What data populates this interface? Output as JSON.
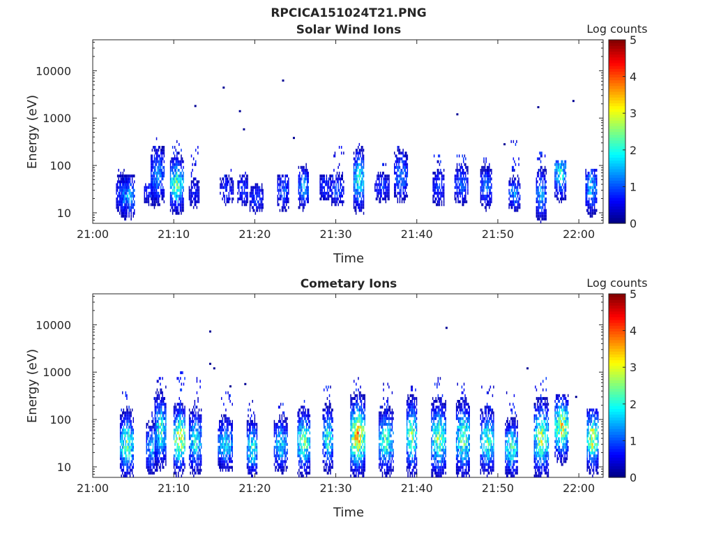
{
  "figure_title": "RPCICA151024T21.PNG",
  "chart_data": [
    {
      "type": "heatmap",
      "title": "Solar Wind Ions",
      "xlabel": "Time",
      "ylabel": "Energy (eV)",
      "x_scale": "time",
      "y_scale": "log",
      "xlim": [
        "21:00",
        "22:03"
      ],
      "ylim": [
        6,
        45000
      ],
      "xticks": [
        "21:00",
        "21:10",
        "21:20",
        "21:30",
        "21:40",
        "21:50",
        "22:00"
      ],
      "yticks": [
        {
          "value": 10,
          "label": "10"
        },
        {
          "value": 100,
          "label": "100"
        },
        {
          "value": 1000,
          "label": "1000"
        },
        {
          "value": 10000,
          "label": "10000"
        }
      ],
      "colorbar": {
        "label": "Log counts",
        "range": [
          0,
          5
        ],
        "ticks": [
          "0",
          "1",
          "2",
          "3",
          "4",
          "5"
        ],
        "colormap": "jet"
      },
      "bursts": [
        {
          "time": "21:03:40",
          "energy": 25,
          "spread": 0.25,
          "peak": 1.2,
          "up": 90
        },
        {
          "time": "21:04:20",
          "energy": 22,
          "spread": 0.25,
          "peak": 1.8,
          "up": 60
        },
        {
          "time": "21:07:10",
          "energy": 30,
          "spread": 0.2,
          "peak": 1.0,
          "up": 40
        },
        {
          "time": "21:08:00",
          "energy": 60,
          "spread": 0.35,
          "peak": 1.5,
          "up": 450
        },
        {
          "time": "21:10:20",
          "energy": 40,
          "spread": 0.3,
          "peak": 2.6,
          "up": 350
        },
        {
          "time": "21:12:30",
          "energy": 25,
          "spread": 0.2,
          "peak": 0.8,
          "up": 300
        },
        {
          "time": "21:16:30",
          "energy": 30,
          "spread": 0.2,
          "peak": 0.9,
          "up": 80
        },
        {
          "time": "21:18:30",
          "energy": 30,
          "spread": 0.2,
          "peak": 1.1,
          "up": 80
        },
        {
          "time": "21:20:10",
          "energy": 20,
          "spread": 0.2,
          "peak": 1.0,
          "up": 40
        },
        {
          "time": "21:23:30",
          "energy": 30,
          "spread": 0.25,
          "peak": 1.2,
          "up": 60
        },
        {
          "time": "21:26:00",
          "energy": 35,
          "spread": 0.25,
          "peak": 1.7,
          "up": 100
        },
        {
          "time": "21:28:40",
          "energy": 35,
          "spread": 0.2,
          "peak": 1.0,
          "up": 60
        },
        {
          "time": "21:30:10",
          "energy": 30,
          "spread": 0.2,
          "peak": 1.2,
          "up": 250
        },
        {
          "time": "21:32:50",
          "energy": 50,
          "spread": 0.35,
          "peak": 2.3,
          "up": 300
        },
        {
          "time": "21:35:40",
          "energy": 35,
          "spread": 0.2,
          "peak": 1.0,
          "up": 120
        },
        {
          "time": "21:38:00",
          "energy": 60,
          "spread": 0.3,
          "peak": 1.5,
          "up": 250
        },
        {
          "time": "21:42:40",
          "energy": 35,
          "spread": 0.25,
          "peak": 1.0,
          "up": 180
        },
        {
          "time": "21:45:30",
          "energy": 40,
          "spread": 0.25,
          "peak": 1.2,
          "up": 180
        },
        {
          "time": "21:48:30",
          "energy": 35,
          "spread": 0.25,
          "peak": 1.4,
          "up": 150
        },
        {
          "time": "21:52:00",
          "energy": 25,
          "spread": 0.2,
          "peak": 1.6,
          "up": 350
        },
        {
          "time": "21:55:20",
          "energy": 25,
          "spread": 0.3,
          "peak": 1.7,
          "up": 200
        },
        {
          "time": "21:57:40",
          "energy": 70,
          "spread": 0.3,
          "peak": 2.2,
          "up": 120
        },
        {
          "time": "22:01:30",
          "energy": 35,
          "spread": 0.3,
          "peak": 1.8,
          "up": 80
        }
      ],
      "sparse_points": [
        {
          "time": "21:12:40",
          "energy": 1800
        },
        {
          "time": "21:16:10",
          "energy": 4400
        },
        {
          "time": "21:18:10",
          "energy": 1400
        },
        {
          "time": "21:18:40",
          "energy": 580
        },
        {
          "time": "21:23:30",
          "energy": 6200
        },
        {
          "time": "21:24:50",
          "energy": 380
        },
        {
          "time": "21:45:00",
          "energy": 1200
        },
        {
          "time": "21:50:50",
          "energy": 280
        },
        {
          "time": "21:55:00",
          "energy": 1700
        },
        {
          "time": "21:59:20",
          "energy": 2300
        }
      ]
    },
    {
      "type": "heatmap",
      "title": "Cometary Ions",
      "xlabel": "Time",
      "ylabel": "Energy (eV)",
      "x_scale": "time",
      "y_scale": "log",
      "xlim": [
        "21:00",
        "22:03"
      ],
      "ylim": [
        6,
        45000
      ],
      "xticks": [
        "21:00",
        "21:10",
        "21:20",
        "21:30",
        "21:40",
        "21:50",
        "22:00"
      ],
      "yticks": [
        {
          "value": 10,
          "label": "10"
        },
        {
          "value": 100,
          "label": "100"
        },
        {
          "value": 1000,
          "label": "1000"
        },
        {
          "value": 10000,
          "label": "10000"
        }
      ],
      "colorbar": {
        "label": "Log counts",
        "range": [
          0,
          5
        ],
        "ticks": [
          "0",
          "1",
          "2",
          "3",
          "4",
          "5"
        ],
        "colormap": "jet"
      },
      "bursts": [
        {
          "time": "21:04:10",
          "energy": 30,
          "spread": 0.35,
          "peak": 2.7,
          "up": 400
        },
        {
          "time": "21:07:20",
          "energy": 25,
          "spread": 0.3,
          "peak": 1.8,
          "up": 300
        },
        {
          "time": "21:08:20",
          "energy": 60,
          "spread": 0.4,
          "peak": 2.4,
          "up": 800
        },
        {
          "time": "21:10:40",
          "energy": 40,
          "spread": 0.35,
          "peak": 3.6,
          "up": 1000
        },
        {
          "time": "21:12:40",
          "energy": 35,
          "spread": 0.35,
          "peak": 2.2,
          "up": 800
        },
        {
          "time": "21:16:20",
          "energy": 30,
          "spread": 0.3,
          "peak": 2.0,
          "up": 400
        },
        {
          "time": "21:19:40",
          "energy": 25,
          "spread": 0.3,
          "peak": 2.4,
          "up": 250
        },
        {
          "time": "21:23:10",
          "energy": 30,
          "spread": 0.3,
          "peak": 2.0,
          "up": 350
        },
        {
          "time": "21:26:00",
          "energy": 35,
          "spread": 0.35,
          "peak": 2.8,
          "up": 450
        },
        {
          "time": "21:29:00",
          "energy": 40,
          "spread": 0.35,
          "peak": 2.3,
          "up": 500
        },
        {
          "time": "21:32:40",
          "energy": 45,
          "spread": 0.4,
          "peak": 3.8,
          "up": 900
        },
        {
          "time": "21:36:10",
          "energy": 35,
          "spread": 0.35,
          "peak": 2.5,
          "up": 600
        },
        {
          "time": "21:39:20",
          "energy": 45,
          "spread": 0.4,
          "peak": 2.9,
          "up": 600
        },
        {
          "time": "21:42:40",
          "energy": 40,
          "spread": 0.4,
          "peak": 2.8,
          "up": 800
        },
        {
          "time": "21:45:40",
          "energy": 40,
          "spread": 0.4,
          "peak": 2.8,
          "up": 600
        },
        {
          "time": "21:48:40",
          "energy": 35,
          "spread": 0.35,
          "peak": 2.6,
          "up": 500
        },
        {
          "time": "21:51:40",
          "energy": 25,
          "spread": 0.3,
          "peak": 2.5,
          "up": 400
        },
        {
          "time": "21:55:20",
          "energy": 40,
          "spread": 0.4,
          "peak": 3.0,
          "up": 800
        },
        {
          "time": "21:57:50",
          "energy": 70,
          "spread": 0.35,
          "peak": 3.4,
          "up": 300
        },
        {
          "time": "22:01:40",
          "energy": 40,
          "spread": 0.35,
          "peak": 3.2,
          "up": 150
        }
      ],
      "sparse_points": [
        {
          "time": "21:14:30",
          "energy": 7200
        },
        {
          "time": "21:14:30",
          "energy": 1500
        },
        {
          "time": "21:15:00",
          "energy": 1200
        },
        {
          "time": "21:17:00",
          "energy": 500
        },
        {
          "time": "21:18:50",
          "energy": 560
        },
        {
          "time": "21:43:40",
          "energy": 8600
        },
        {
          "time": "21:53:40",
          "energy": 1200
        },
        {
          "time": "21:59:40",
          "energy": 300
        }
      ]
    }
  ]
}
